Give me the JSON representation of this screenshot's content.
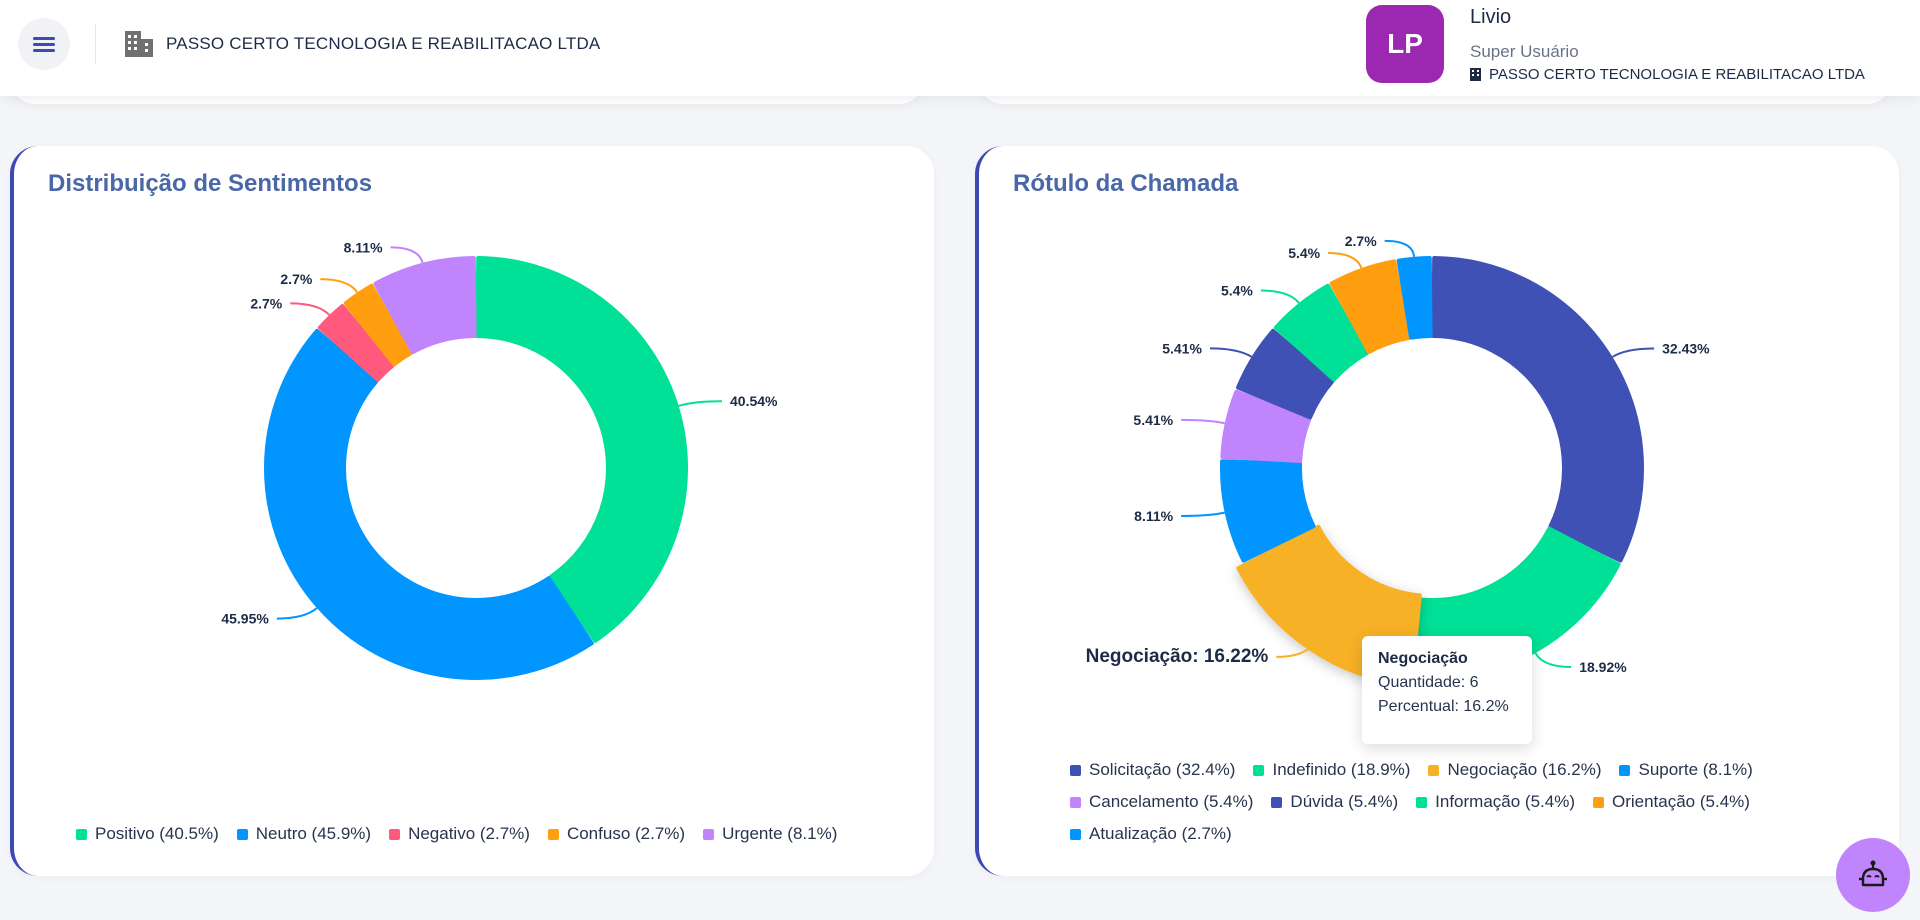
{
  "header": {
    "menu_icon": "hamburger-menu-icon",
    "company_icon": "building-icon",
    "company_name": "PASSO CERTO TECNOLOGIA E REABILITACAO LTDA",
    "user": {
      "initials": "LP",
      "name": "Livio",
      "role": "Super Usuário",
      "company": "PASSO CERTO TECNOLOGIA E REABILITACAO LTDA",
      "avatar_color": "#9c27b0"
    }
  },
  "chat_bot_icon": "robot-icon",
  "chart_data": [
    {
      "type": "pie",
      "variant": "donut",
      "title": "Distribuição de Sentimentos",
      "categories": [
        "Positivo",
        "Neutro",
        "Negativo",
        "Confuso",
        "Urgente"
      ],
      "values": [
        40.54,
        45.95,
        2.7,
        2.7,
        8.11
      ],
      "data_labels": [
        "40.54%",
        "45.95%",
        "2.7%",
        "2.7%",
        "8.11%"
      ],
      "colors": [
        "#00e096",
        "#0095ff",
        "#ff5a7e",
        "#ff9f10",
        "#c084fc"
      ],
      "legend": [
        "Positivo (40.5%)",
        "Neutro (45.9%)",
        "Negativo (2.7%)",
        "Confuso (2.7%)",
        "Urgente (8.1%)"
      ],
      "legend_position": "bottom"
    },
    {
      "type": "pie",
      "variant": "donut",
      "title": "Rótulo da Chamada",
      "categories": [
        "Solicitação",
        "Indefinido",
        "Negociação",
        "Suporte",
        "Cancelamento",
        "Dúvida",
        "Informação",
        "Orientação",
        "Atualização"
      ],
      "values": [
        32.43,
        18.92,
        16.22,
        8.11,
        5.41,
        5.41,
        5.4,
        5.4,
        2.7
      ],
      "data_labels": [
        "32.43%",
        "18.92%",
        "Negociação: 16.22%",
        "8.11%",
        "5.41%",
        "5.41%",
        "5.4%",
        "5.4%",
        "2.7%"
      ],
      "colors": [
        "#3f51b5",
        "#00e096",
        "#f7b125",
        "#0095ff",
        "#c084fc",
        "#3f51b5",
        "#00e096",
        "#ff9f10",
        "#0095ff"
      ],
      "legend": [
        "Solicitação (32.4%)",
        "Indefinido (18.9%)",
        "Negociação (16.2%)",
        "Suporte (8.1%)",
        "Cancelamento (5.4%)",
        "Dúvida (5.4%)",
        "Informação (5.4%)",
        "Orientação (5.4%)",
        "Atualização (2.7%)"
      ],
      "legend_position": "bottom",
      "highlighted": "Negociação",
      "tooltip": {
        "title": "Negociação",
        "lines": [
          "Quantidade: 6",
          "Percentual: 16.2%"
        ]
      }
    }
  ]
}
